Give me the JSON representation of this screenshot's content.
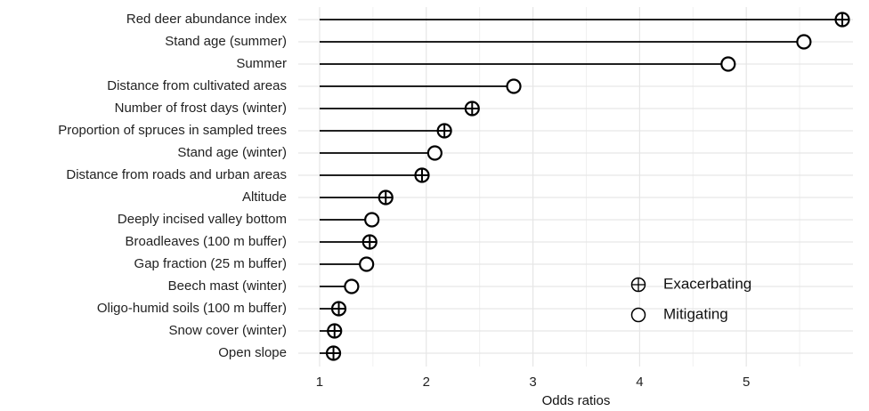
{
  "chart_data": {
    "type": "lollipop",
    "orientation": "horizontal",
    "xlabel": "Odds ratios",
    "categories": [
      "Red deer abundance index",
      "Stand age (summer)",
      "Summer",
      "Distance from cultivated areas",
      "Number of frost days (winter)",
      "Proportion of spruces in sampled trees",
      "Stand age (winter)",
      "Distance from roads  and urban areas",
      "Altitude",
      "Deeply incised valley bottom",
      "Broadleaves (100 m buffer)",
      "Gap fraction (25 m buffer)",
      "Beech mast (winter)",
      "Oligo-humid soils (100 m buffer)",
      "Snow cover (winter)",
      "Open slope"
    ],
    "series": [
      {
        "name": "Exacerbating",
        "marker": "circle-plus",
        "color": "#000000",
        "values": [
          5.9,
          null,
          null,
          null,
          2.43,
          2.17,
          null,
          1.96,
          1.62,
          null,
          1.47,
          null,
          null,
          1.18,
          1.14,
          1.13
        ]
      },
      {
        "name": "Mitigating",
        "marker": "circle",
        "color": "#000000",
        "values": [
          null,
          5.54,
          4.83,
          2.82,
          null,
          null,
          2.08,
          null,
          null,
          1.49,
          null,
          1.44,
          1.3,
          null,
          null,
          null
        ]
      }
    ],
    "baseline": 1,
    "xlim": [
      0.8,
      6.0
    ],
    "xticks": [
      1,
      2,
      3,
      4,
      5
    ],
    "grid": true,
    "legend_position": "inside-right"
  }
}
